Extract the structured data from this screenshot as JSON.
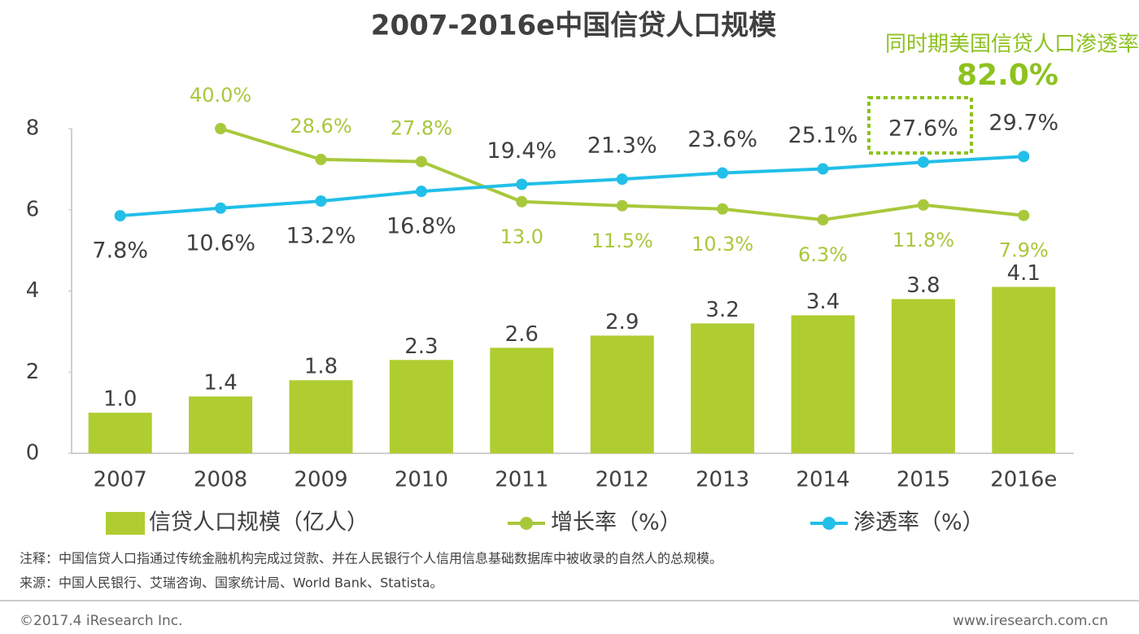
{
  "chart_data": {
    "type": "bar",
    "title": "2007-2016e中国信贷人口规模",
    "annotation": {
      "text": "同时期美国信贷人口渗透率为",
      "highlight": "82.0%"
    },
    "categories": [
      "2007",
      "2008",
      "2009",
      "2010",
      "2011",
      "2012",
      "2013",
      "2014",
      "2015",
      "2016e"
    ],
    "ylim": [
      0,
      8
    ],
    "yticks": [
      0,
      2,
      4,
      6,
      8
    ],
    "y2lim": [
      -80,
      40
    ],
    "series": [
      {
        "name": "信贷人口规模（亿人）",
        "type": "bar",
        "color": "#afcd30",
        "values": [
          1.0,
          1.4,
          1.8,
          2.3,
          2.6,
          2.9,
          3.2,
          3.4,
          3.8,
          4.1
        ],
        "value_labels": [
          "1.0",
          "1.4",
          "1.8",
          "2.3",
          "2.6",
          "2.9",
          "3.2",
          "3.4",
          "3.8",
          "4.1"
        ]
      },
      {
        "name": "增长率（%）",
        "type": "line",
        "axis": "y2",
        "color": "#a8c83c",
        "values": [
          null,
          40.0,
          28.6,
          27.8,
          13.0,
          11.5,
          10.3,
          6.3,
          11.8,
          7.9
        ],
        "value_labels": [
          null,
          "40.0%",
          "28.6%",
          "27.8%",
          "13.0",
          "11.5%",
          "10.3%",
          "6.3%",
          "11.8%",
          "7.9%"
        ]
      },
      {
        "name": "渗透率（%）",
        "type": "line",
        "axis": "y2",
        "color": "#22bfe8",
        "values": [
          7.8,
          10.6,
          13.2,
          16.8,
          19.4,
          21.3,
          23.6,
          25.1,
          27.6,
          29.7
        ],
        "value_labels": [
          "7.8%",
          "10.6%",
          "13.2%",
          "16.8%",
          "19.4%",
          "21.3%",
          "23.6%",
          "25.1%",
          "27.6%",
          "29.7%"
        ]
      }
    ],
    "note": "注释：中国信贷人口指通过传统金融机构完成过贷款、并在人民银行个人信用信息基础数据库中被收录的自然人的总规模。",
    "source": "来源：中国人民银行、艾瑞咨询、国家统计局、World Bank、Statista。",
    "copyright": "©2017.4 iResearch Inc.",
    "website": "www.iresearch.com.cn"
  }
}
